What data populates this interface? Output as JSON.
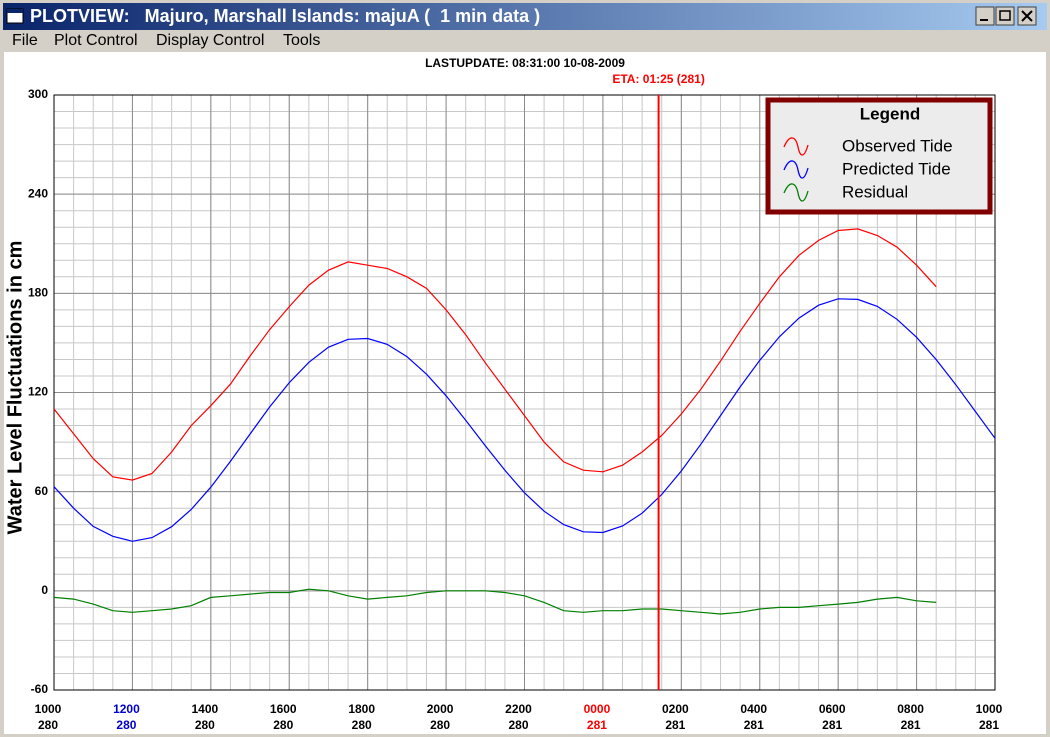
{
  "window": {
    "title": "PLOTVIEW:   Majuro, Marshall Islands: majuA (  1 min data )",
    "menu": [
      "File",
      "Plot Control",
      "Display Control",
      "Tools"
    ]
  },
  "chart_data": {
    "type": "line",
    "header": "LASTUPDATE: 08:31:00  10-08-2009",
    "annotation": {
      "text": "ETA: 01:25 (281)",
      "x": 15.42,
      "color": "#ff0000"
    },
    "ylabel": "Water Level Fluctuations in cm",
    "legend_title": "Legend",
    "legend": "top-right",
    "grid": true,
    "x_minor_step": 0.5,
    "y_minor_step": 10,
    "xlim": [
      0,
      24
    ],
    "ylim": [
      -60,
      300
    ],
    "yticks": [
      -60,
      0,
      60,
      120,
      180,
      240,
      300
    ],
    "xticks": [
      {
        "value": 0,
        "label": "1000"
      },
      {
        "value": 2,
        "label": "1200"
      },
      {
        "value": 4,
        "label": "1400"
      },
      {
        "value": 6,
        "label": "1600"
      },
      {
        "value": 8,
        "label": "1800"
      },
      {
        "value": 10,
        "label": "2000"
      },
      {
        "value": 12,
        "label": "2200"
      },
      {
        "value": 14,
        "label": "0000"
      },
      {
        "value": 16,
        "label": "0200"
      },
      {
        "value": 18,
        "label": "0400"
      },
      {
        "value": 20,
        "label": "0600"
      },
      {
        "value": 22,
        "label": "0800"
      },
      {
        "value": 24,
        "label": "1000"
      }
    ],
    "xtick_days": [
      "280",
      "280",
      "280",
      "280",
      "280",
      "280",
      "280",
      "281",
      "281",
      "281",
      "281",
      "281",
      "281"
    ],
    "xtick_colors": [
      "#000000",
      "#0000cc",
      "#000000",
      "#000000",
      "#000000",
      "#000000",
      "#000000",
      "#ff0000",
      "#000000",
      "#000000",
      "#000000",
      "#000000",
      "#000000"
    ],
    "x": [
      0,
      0.5,
      1,
      1.5,
      2,
      2.5,
      3,
      3.5,
      4,
      4.5,
      5,
      5.5,
      6,
      6.5,
      7,
      7.5,
      8,
      8.5,
      9,
      9.5,
      10,
      10.5,
      11,
      11.5,
      12,
      12.5,
      13,
      13.5,
      14,
      14.5,
      15,
      15.5,
      16,
      16.5,
      17,
      17.5,
      18,
      18.5,
      19,
      19.5,
      20,
      20.5,
      21,
      21.5,
      22,
      22.5,
      23,
      23.5,
      24
    ],
    "series": [
      {
        "name": "Observed Tide",
        "color": "#ff0000",
        "values": [
          110,
          95,
          80,
          69,
          67,
          71,
          84,
          100,
          112,
          125,
          142,
          158,
          172,
          185,
          194,
          199,
          197,
          195,
          190,
          183,
          170,
          155,
          138,
          122,
          106,
          90,
          78,
          73,
          72,
          76,
          84,
          94,
          107,
          122,
          139,
          157,
          174,
          190,
          203,
          212,
          218,
          219,
          215,
          208,
          197,
          184,
          null,
          null,
          null
        ]
      },
      {
        "name": "Predicted Tide",
        "color": "#0000ff",
        "values": [
          63,
          50,
          39,
          33,
          30,
          32.2,
          38.8,
          49.2,
          62.7,
          78.3,
          94.8,
          111.2,
          126,
          138.3,
          147.4,
          152.2,
          152.7,
          149.1,
          141.7,
          131.1,
          118,
          103.2,
          87.8,
          72.9,
          59.3,
          48.2,
          40.1,
          35.7,
          35.3,
          39.2,
          47,
          58.3,
          72.5,
          88.7,
          106,
          123.3,
          139.5,
          153.7,
          165,
          172.8,
          176.7,
          176.3,
          172.1,
          164.3,
          153.4,
          139.9,
          124.7,
          108.5,
          92.3
        ]
      },
      {
        "name": "Residual",
        "color": "#008000",
        "values": [
          -4,
          -5,
          -8,
          -12,
          -13,
          -12,
          -11,
          -9,
          -4,
          -3,
          -2,
          -1,
          -1,
          1,
          0,
          -3,
          -5,
          -4,
          -3,
          -1,
          0,
          0,
          0,
          -1,
          -3,
          -7,
          -12,
          -13,
          -12,
          -12,
          -11,
          -11,
          -12,
          -13,
          -14,
          -13,
          -11,
          -10,
          -10,
          -9,
          -8,
          -7,
          -5,
          -4,
          -6,
          -7,
          null,
          null,
          null
        ]
      }
    ]
  }
}
